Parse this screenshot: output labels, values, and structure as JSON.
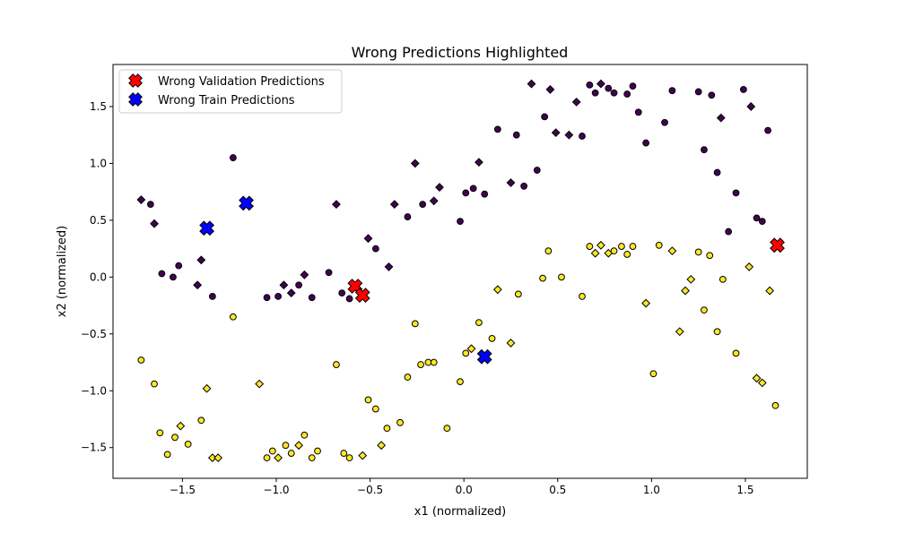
{
  "chart_data": {
    "type": "scatter",
    "title": "Wrong Predictions Highlighted",
    "xlabel": "x1 (normalized)",
    "ylabel": "x2 (normalized)",
    "xlim": [
      -1.87,
      1.83
    ],
    "ylim": [
      -1.77,
      1.87
    ],
    "x_ticks": [
      -1.5,
      -1.0,
      -0.5,
      0.0,
      0.5,
      1.0,
      1.5
    ],
    "x_tick_labels": [
      "−1.5",
      "−1.0",
      "−0.5",
      "0.0",
      "0.5",
      "1.0",
      "1.5"
    ],
    "y_ticks": [
      -1.5,
      -1.0,
      -0.5,
      0.0,
      0.5,
      1.0,
      1.5
    ],
    "y_tick_labels": [
      "−1.5",
      "−1.0",
      "−0.5",
      "0.0",
      "0.5",
      "1.0",
      "1.5"
    ],
    "grid": false,
    "legend_position": "top-left",
    "colors": {
      "class_0": "#440154",
      "class_1": "#fde725",
      "wrong_validation": "#ff0000",
      "wrong_train": "#0000ff",
      "edge": "#000000"
    },
    "legend": [
      {
        "label": "Wrong Validation Predictions",
        "color": "#ff0000",
        "marker": "x"
      },
      {
        "label": "Wrong Train Predictions",
        "color": "#0000ff",
        "marker": "x"
      }
    ],
    "series": [
      {
        "class": 0,
        "marker": "circle",
        "color": "#440154",
        "points": [
          [
            -1.67,
            0.64
          ],
          [
            -1.61,
            0.03
          ],
          [
            -1.55,
            0.0
          ],
          [
            -1.52,
            0.1
          ],
          [
            -1.34,
            -0.17
          ],
          [
            -1.23,
            1.05
          ],
          [
            -1.05,
            -0.18
          ],
          [
            -0.99,
            -0.17
          ],
          [
            -0.88,
            -0.07
          ],
          [
            -0.81,
            -0.18
          ],
          [
            -0.72,
            0.04
          ],
          [
            -0.65,
            -0.14
          ],
          [
            -0.61,
            -0.19
          ],
          [
            -0.47,
            0.25
          ],
          [
            -0.3,
            0.53
          ],
          [
            -0.22,
            0.64
          ],
          [
            -0.02,
            0.49
          ],
          [
            0.01,
            0.74
          ],
          [
            0.05,
            0.78
          ],
          [
            0.11,
            0.73
          ],
          [
            0.18,
            1.3
          ],
          [
            0.28,
            1.25
          ],
          [
            0.32,
            0.8
          ],
          [
            0.39,
            0.94
          ],
          [
            0.43,
            1.41
          ],
          [
            0.63,
            1.24
          ],
          [
            0.67,
            1.69
          ],
          [
            0.7,
            1.62
          ],
          [
            0.77,
            1.66
          ],
          [
            0.8,
            1.62
          ],
          [
            0.87,
            1.61
          ],
          [
            0.9,
            1.68
          ],
          [
            0.93,
            1.45
          ],
          [
            0.97,
            1.18
          ],
          [
            1.07,
            1.36
          ],
          [
            1.11,
            1.64
          ],
          [
            1.25,
            1.63
          ],
          [
            1.28,
            1.12
          ],
          [
            1.32,
            1.6
          ],
          [
            1.35,
            0.92
          ],
          [
            1.41,
            0.4
          ],
          [
            1.45,
            0.74
          ],
          [
            1.49,
            1.65
          ],
          [
            1.56,
            0.52
          ],
          [
            1.59,
            0.49
          ],
          [
            1.62,
            1.29
          ]
        ]
      },
      {
        "class": 0,
        "marker": "diamond",
        "color": "#440154",
        "points": [
          [
            -1.72,
            0.68
          ],
          [
            -1.65,
            0.47
          ],
          [
            -1.42,
            -0.07
          ],
          [
            -1.4,
            0.15
          ],
          [
            -0.96,
            -0.07
          ],
          [
            -0.92,
            -0.14
          ],
          [
            -0.85,
            0.02
          ],
          [
            -0.68,
            0.64
          ],
          [
            -0.51,
            0.34
          ],
          [
            -0.4,
            0.09
          ],
          [
            -0.37,
            0.64
          ],
          [
            -0.26,
            1.0
          ],
          [
            -0.16,
            0.67
          ],
          [
            -0.13,
            0.79
          ],
          [
            0.08,
            1.01
          ],
          [
            0.25,
            0.83
          ],
          [
            0.36,
            1.7
          ],
          [
            0.46,
            1.65
          ],
          [
            0.49,
            1.27
          ],
          [
            0.56,
            1.25
          ],
          [
            0.6,
            1.54
          ],
          [
            0.73,
            1.7
          ],
          [
            1.37,
            1.4
          ],
          [
            1.53,
            1.5
          ]
        ]
      },
      {
        "class": 1,
        "marker": "circle",
        "color": "#fde725",
        "points": [
          [
            -1.72,
            -0.73
          ],
          [
            -1.65,
            -0.94
          ],
          [
            -1.62,
            -1.37
          ],
          [
            -1.58,
            -1.56
          ],
          [
            -1.54,
            -1.41
          ],
          [
            -1.47,
            -1.47
          ],
          [
            -1.4,
            -1.26
          ],
          [
            -1.23,
            -0.35
          ],
          [
            -1.05,
            -1.59
          ],
          [
            -1.02,
            -1.53
          ],
          [
            -0.95,
            -1.48
          ],
          [
            -0.92,
            -1.55
          ],
          [
            -0.85,
            -1.39
          ],
          [
            -0.81,
            -1.59
          ],
          [
            -0.78,
            -1.53
          ],
          [
            -0.68,
            -0.77
          ],
          [
            -0.64,
            -1.55
          ],
          [
            -0.61,
            -1.59
          ],
          [
            -0.51,
            -1.08
          ],
          [
            -0.47,
            -1.16
          ],
          [
            -0.41,
            -1.33
          ],
          [
            -0.34,
            -1.28
          ],
          [
            -0.3,
            -0.88
          ],
          [
            -0.26,
            -0.41
          ],
          [
            -0.23,
            -0.77
          ],
          [
            -0.19,
            -0.75
          ],
          [
            -0.16,
            -0.75
          ],
          [
            -0.09,
            -1.33
          ],
          [
            -0.02,
            -0.92
          ],
          [
            0.01,
            -0.67
          ],
          [
            0.08,
            -0.4
          ],
          [
            0.15,
            -0.54
          ],
          [
            0.29,
            -0.15
          ],
          [
            0.42,
            -0.01
          ],
          [
            0.45,
            0.23
          ],
          [
            0.52,
            0.0
          ],
          [
            0.63,
            -0.17
          ],
          [
            0.67,
            0.27
          ],
          [
            0.8,
            0.23
          ],
          [
            0.84,
            0.27
          ],
          [
            0.87,
            0.2
          ],
          [
            0.9,
            0.27
          ],
          [
            1.01,
            -0.85
          ],
          [
            1.04,
            0.28
          ],
          [
            1.25,
            0.22
          ],
          [
            1.28,
            -0.29
          ],
          [
            1.31,
            0.19
          ],
          [
            1.35,
            -0.48
          ],
          [
            1.38,
            -0.02
          ],
          [
            1.45,
            -0.67
          ],
          [
            1.66,
            -1.13
          ]
        ]
      },
      {
        "class": 1,
        "marker": "diamond",
        "color": "#fde725",
        "points": [
          [
            -1.51,
            -1.31
          ],
          [
            -1.37,
            -0.98
          ],
          [
            -1.34,
            -1.59
          ],
          [
            -1.31,
            -1.59
          ],
          [
            -1.09,
            -0.94
          ],
          [
            -0.99,
            -1.59
          ],
          [
            -0.88,
            -1.48
          ],
          [
            -0.54,
            -1.57
          ],
          [
            -0.44,
            -1.48
          ],
          [
            0.04,
            -0.63
          ],
          [
            0.18,
            -0.11
          ],
          [
            0.25,
            -0.58
          ],
          [
            0.7,
            0.21
          ],
          [
            0.73,
            0.28
          ],
          [
            0.77,
            0.21
          ],
          [
            0.97,
            -0.23
          ],
          [
            1.11,
            0.23
          ],
          [
            1.15,
            -0.48
          ],
          [
            1.18,
            -0.12
          ],
          [
            1.21,
            -0.02
          ],
          [
            1.52,
            0.09
          ],
          [
            1.56,
            -0.89
          ],
          [
            1.59,
            -0.93
          ],
          [
            1.63,
            -0.12
          ]
        ]
      },
      {
        "name": "Wrong Validation Predictions",
        "marker": "x",
        "color": "#ff0000",
        "points": [
          [
            -0.58,
            -0.08
          ],
          [
            -0.54,
            -0.16
          ],
          [
            1.67,
            0.28
          ]
        ]
      },
      {
        "name": "Wrong Train Predictions",
        "marker": "x",
        "color": "#0000ff",
        "points": [
          [
            -1.37,
            0.43
          ],
          [
            -1.16,
            0.65
          ],
          [
            0.11,
            -0.7
          ]
        ]
      }
    ]
  }
}
